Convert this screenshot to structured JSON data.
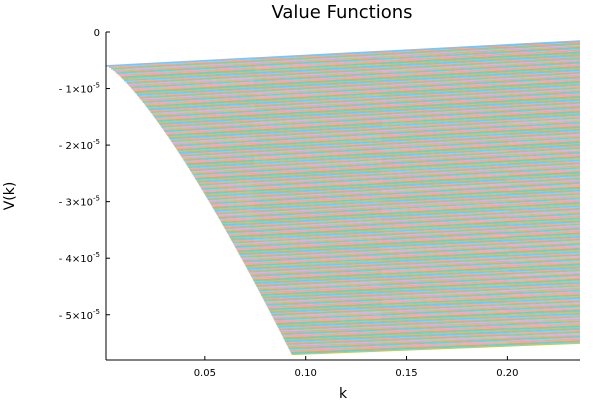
{
  "chart_data": {
    "type": "line",
    "title": "Value Functions",
    "xlabel": "k",
    "ylabel": "V(k)",
    "xlim": [
      0.001,
      0.236
    ],
    "ylim": [
      -5.8e-05,
      0
    ],
    "grid": false,
    "legend": "none",
    "xticks": [
      {
        "value": 0.05,
        "label": "0.05"
      },
      {
        "value": 0.1,
        "label": "0.10"
      },
      {
        "value": 0.15,
        "label": "0.15"
      },
      {
        "value": 0.2,
        "label": "0.20"
      }
    ],
    "yticks": [
      {
        "value": 0,
        "label": "0",
        "mantissa": "",
        "exponent": ""
      },
      {
        "value": -1e-05,
        "label": "- 1×10^-5",
        "mantissa": "- 1×10",
        "exponent": "-5"
      },
      {
        "value": -2e-05,
        "label": "- 2×10^-5",
        "mantissa": "- 2×10",
        "exponent": "-5"
      },
      {
        "value": -3e-05,
        "label": "- 3×10^-5",
        "mantissa": "- 3×10",
        "exponent": "-5"
      },
      {
        "value": -4e-05,
        "label": "- 4×10^-5",
        "mantissa": "- 4×10",
        "exponent": "-5"
      },
      {
        "value": -5e-05,
        "label": "- 5×10^-5",
        "mantissa": "- 5×10",
        "exponent": "-5"
      }
    ],
    "series_family": {
      "description_count": 200,
      "k_start_at_top": 0.001,
      "k_start_at_bottom": 0.093,
      "top_curve": {
        "x": [
          0.001,
          0.236
        ],
        "y": [
          -6e-06,
          -1.6e-06
        ]
      },
      "bottom_curve": {
        "x": [
          0.093,
          0.236
        ],
        "y": [
          -5.7e-05,
          -5.5e-05
        ]
      },
      "colors": [
        "#009af9",
        "#e26f46",
        "#3da44d",
        "#c271d2",
        "#ac8d18",
        "#00a9ad",
        "#ed5e93",
        "#c68125",
        "#00a98d",
        "#8e971e"
      ]
    }
  }
}
